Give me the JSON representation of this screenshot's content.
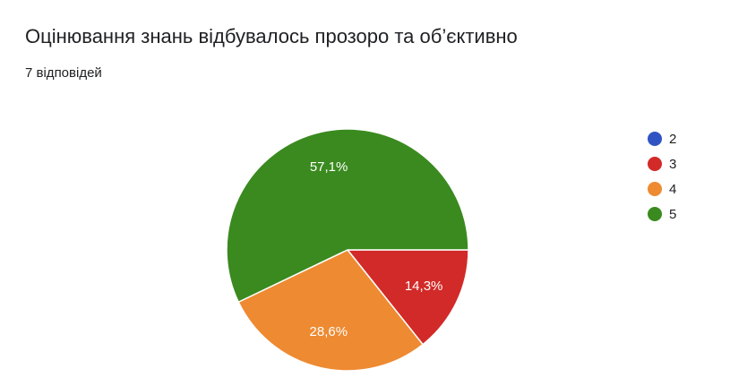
{
  "chart_data": {
    "type": "pie",
    "title": "Оцінювання знань відбувалось прозоро та об’єктивно",
    "subtitle": "7 відповідей",
    "categories": [
      "2",
      "3",
      "4",
      "5"
    ],
    "values": [
      0,
      14.3,
      28.6,
      57.1
    ],
    "value_labels": [
      null,
      "14,3%",
      "28,6%",
      "57,1%"
    ],
    "colors": [
      "#3053c4",
      "#d22a28",
      "#ee8a31",
      "#3a8a1f"
    ],
    "legend": "right"
  }
}
